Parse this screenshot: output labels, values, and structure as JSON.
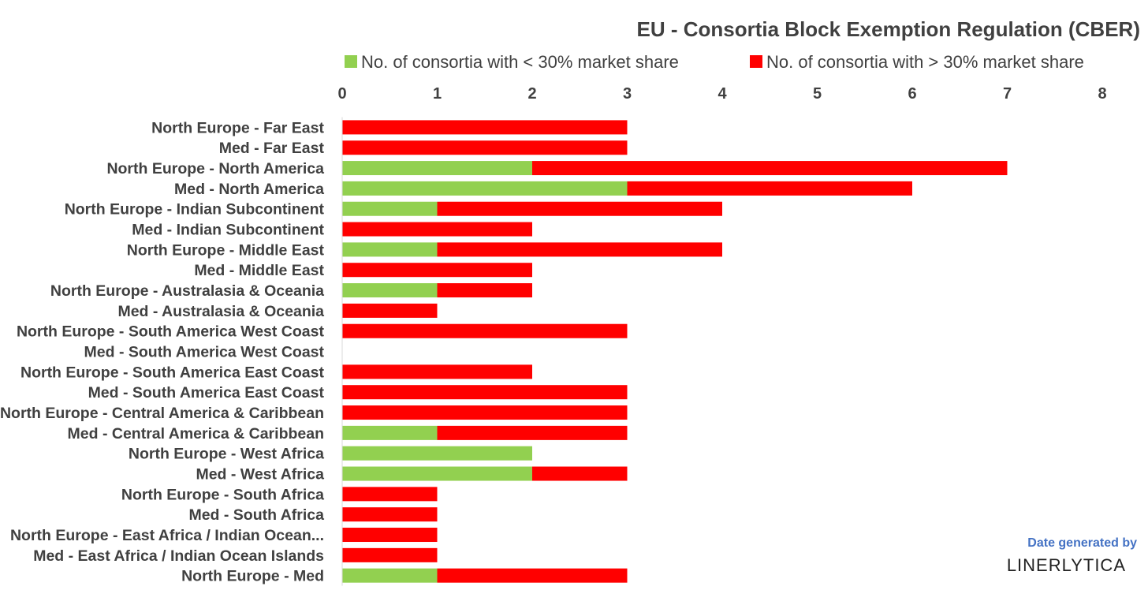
{
  "chart_data": {
    "type": "bar",
    "orientation": "horizontal",
    "stacked": true,
    "title": "EU - Consortia Block Exemption Regulation (CBER)",
    "legend_position": "top",
    "xlim": [
      0,
      8
    ],
    "xticks": [
      0,
      1,
      2,
      3,
      4,
      5,
      6,
      7,
      8
    ],
    "x_axis_position": "top",
    "grid": false,
    "categories": [
      "North Europe - Far East",
      "Med - Far East",
      "North Europe - North America",
      "Med - North America",
      "North Europe - Indian Subcontinent",
      "Med - Indian Subcontinent",
      "North Europe - Middle East",
      "Med - Middle East",
      "North Europe - Australasia & Oceania",
      "Med - Australasia & Oceania",
      "North Europe - South America West Coast",
      "Med - South America West Coast",
      "North Europe - South America East Coast",
      "Med - South America East Coast",
      "North Europe - Central America & Caribbean",
      "Med - Central America & Caribbean",
      "North Europe - West Africa",
      "Med - West Africa",
      "North Europe - South Africa",
      "Med - South Africa",
      "North Europe - East Africa / Indian Ocean...",
      "Med - East Africa / Indian Ocean Islands",
      "North Europe - Med"
    ],
    "series": [
      {
        "name": "No. of consortia with < 30% market share",
        "color": "#92d050",
        "values": [
          0,
          0,
          2,
          3,
          1,
          0,
          1,
          0,
          1,
          0,
          0,
          0,
          0,
          0,
          0,
          1,
          2,
          2,
          0,
          0,
          0,
          0,
          1
        ]
      },
      {
        "name": "No. of consortia with > 30% market share",
        "color": "#ff0000",
        "values": [
          3,
          3,
          5,
          3,
          3,
          2,
          3,
          2,
          1,
          1,
          3,
          0,
          2,
          3,
          3,
          2,
          0,
          1,
          1,
          1,
          1,
          1,
          2
        ]
      }
    ]
  },
  "credit": {
    "top": "Date generated by",
    "brand": "LINERLYTICA"
  }
}
